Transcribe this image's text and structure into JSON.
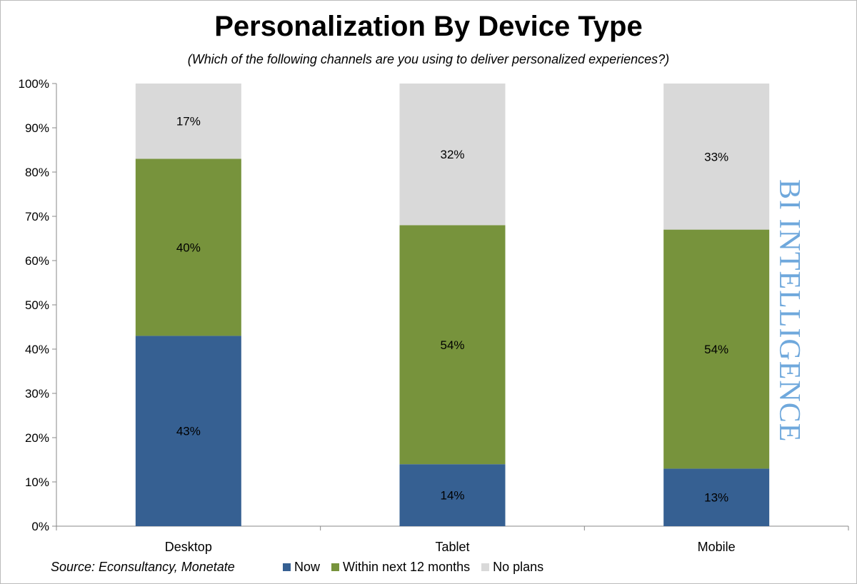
{
  "chart_data": {
    "type": "bar",
    "stacked": true,
    "title": "Personalization By Device Type",
    "subtitle": "(Which of the following channels are you using to deliver personalized experiences?)",
    "categories": [
      "Desktop",
      "Tablet",
      "Mobile"
    ],
    "series": [
      {
        "name": "Now",
        "color": "#366092",
        "values": [
          43,
          14,
          13
        ],
        "labels": [
          "43%",
          "14%",
          "13%"
        ]
      },
      {
        "name": "Within next 12 months",
        "color": "#77933C",
        "values": [
          40,
          54,
          54
        ],
        "labels": [
          "40%",
          "54%",
          "54%"
        ]
      },
      {
        "name": "No plans",
        "color": "#D9D9D9",
        "values": [
          17,
          32,
          33
        ],
        "labels": [
          "17%",
          "32%",
          "33%"
        ]
      }
    ],
    "ylim": [
      0,
      100
    ],
    "yticks": [
      "0%",
      "10%",
      "20%",
      "30%",
      "40%",
      "50%",
      "60%",
      "70%",
      "80%",
      "90%",
      "100%"
    ],
    "xlabel": "",
    "ylabel": "",
    "legend": "bottom",
    "grid": false,
    "source": "Source: Econsultancy, Monetate",
    "watermark": "BI INTELLIGENCE"
  }
}
